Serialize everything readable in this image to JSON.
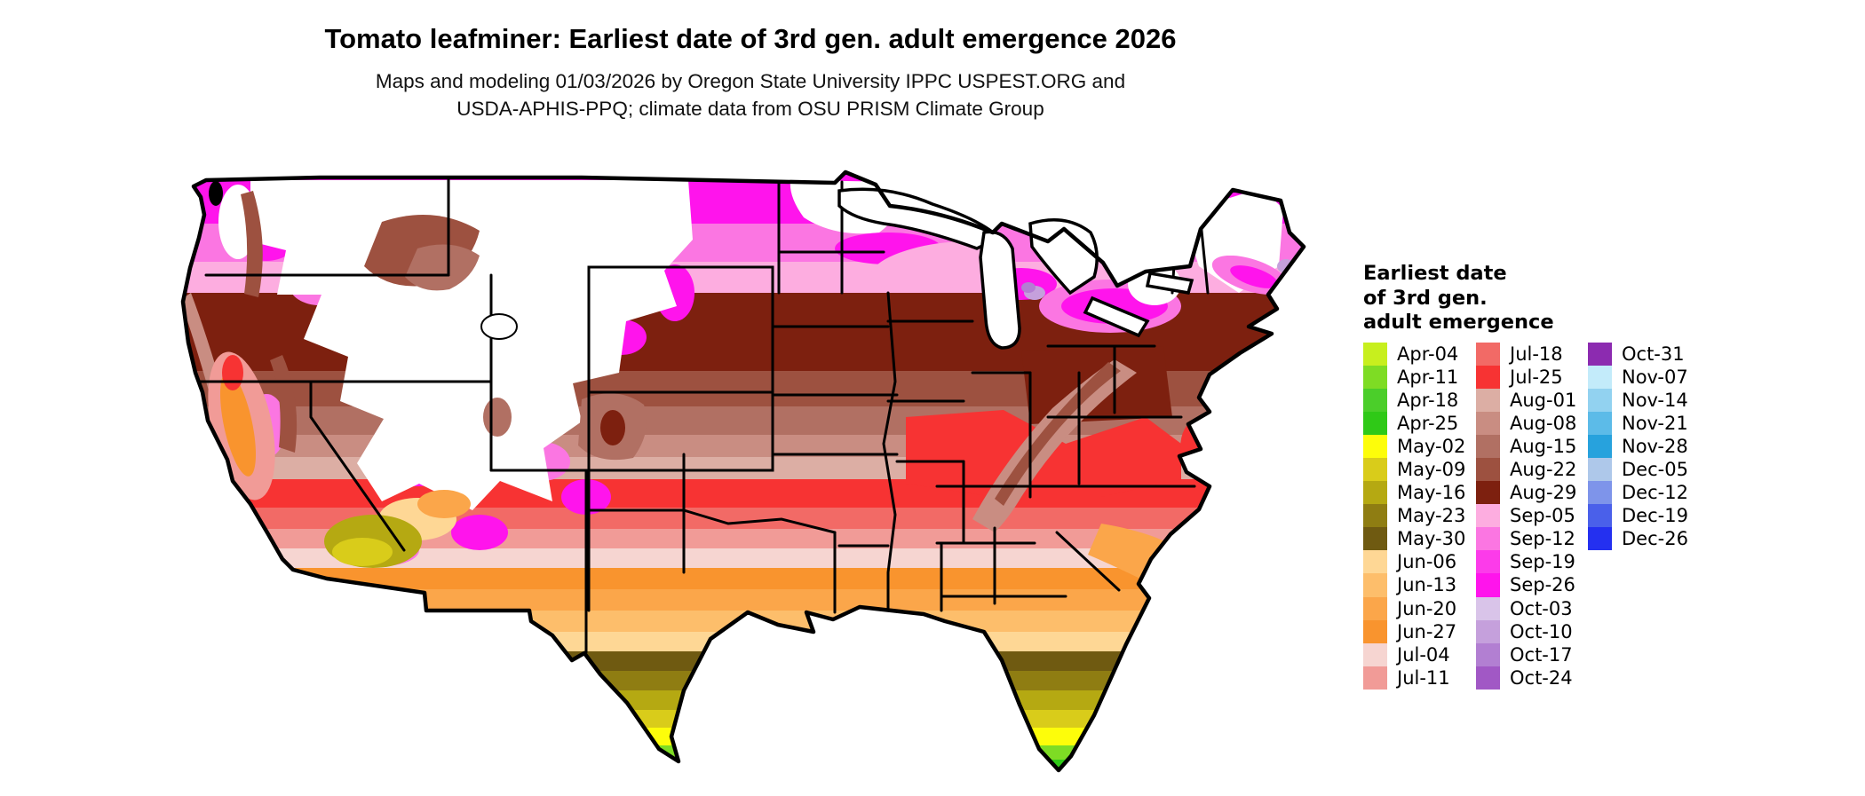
{
  "header": {
    "title": "Tomato leafminer: Earliest date of 3rd gen. adult emergence 2026",
    "subtitle_line1": "Maps and modeling 01/03/2026 by Oregon State University IPPC USPEST.ORG and",
    "subtitle_line2": "USDA-APHIS-PPQ; climate data from OSU PRISM Climate Group"
  },
  "legend": {
    "title_lines": [
      "Earliest date",
      "of 3rd gen.",
      "adult emergence"
    ],
    "columns": [
      {
        "entries": [
          {
            "label": "Apr-04",
            "color": "#c7ef1e"
          },
          {
            "label": "Apr-11",
            "color": "#7edc24"
          },
          {
            "label": "Apr-18",
            "color": "#4bce2a"
          },
          {
            "label": "Apr-25",
            "color": "#2fc917"
          },
          {
            "label": "May-02",
            "color": "#fdfd0a"
          },
          {
            "label": "May-09",
            "color": "#d9cc1a"
          },
          {
            "label": "May-16",
            "color": "#b5a912"
          },
          {
            "label": "May-23",
            "color": "#8f7d12"
          },
          {
            "label": "May-30",
            "color": "#6f5a11"
          },
          {
            "label": "Jun-06",
            "color": "#fed795"
          },
          {
            "label": "Jun-13",
            "color": "#fdbe6b"
          },
          {
            "label": "Jun-20",
            "color": "#fba64a"
          },
          {
            "label": "Jun-27",
            "color": "#f9942e"
          },
          {
            "label": "Jul-04",
            "color": "#f6d5d1"
          },
          {
            "label": "Jul-11",
            "color": "#f19b97"
          }
        ]
      },
      {
        "entries": [
          {
            "label": "Jul-18",
            "color": "#f26a66"
          },
          {
            "label": "Jul-25",
            "color": "#f73333"
          },
          {
            "label": "Aug-01",
            "color": "#dcaea4"
          },
          {
            "label": "Aug-08",
            "color": "#c98d82"
          },
          {
            "label": "Aug-15",
            "color": "#b17063"
          },
          {
            "label": "Aug-22",
            "color": "#9d5140"
          },
          {
            "label": "Aug-29",
            "color": "#7d200f"
          },
          {
            "label": "Sep-05",
            "color": "#fdade0"
          },
          {
            "label": "Sep-12",
            "color": "#fb76e2"
          },
          {
            "label": "Sep-19",
            "color": "#fc3bea"
          },
          {
            "label": "Sep-26",
            "color": "#ff14ec"
          },
          {
            "label": "Oct-03",
            "color": "#d9c4e9"
          },
          {
            "label": "Oct-10",
            "color": "#c5a0dc"
          },
          {
            "label": "Oct-17",
            "color": "#b27fd2"
          },
          {
            "label": "Oct-24",
            "color": "#a158c5"
          }
        ]
      },
      {
        "entries": [
          {
            "label": "Oct-31",
            "color": "#8c2bb0"
          },
          {
            "label": "Nov-07",
            "color": "#c3ebfa"
          },
          {
            "label": "Nov-14",
            "color": "#92d2f0"
          },
          {
            "label": "Nov-21",
            "color": "#5cbbe8"
          },
          {
            "label": "Nov-28",
            "color": "#27a2dd"
          },
          {
            "label": "Dec-05",
            "color": "#aec8ea"
          },
          {
            "label": "Dec-12",
            "color": "#7e94ea"
          },
          {
            "label": "Dec-19",
            "color": "#4a60ea"
          },
          {
            "label": "Dec-26",
            "color": "#2430f0"
          }
        ]
      }
    ]
  },
  "map": {
    "region": "Contiguous United States",
    "type": "choropleth raster of earliest 3rd generation adult emergence date",
    "band_order_north_to_south": [
      "Sep-26",
      "Sep-12",
      "Sep-05",
      "Aug-29",
      "Aug-22",
      "Aug-15",
      "Aug-08",
      "Aug-01",
      "Jul-25",
      "Jul-18",
      "Jul-11",
      "Jul-04",
      "Jun-27",
      "Jun-20",
      "Jun-13",
      "Jun-06",
      "May-30",
      "May-23",
      "May-16",
      "May-09",
      "May-02",
      "Apr-11",
      "Apr-25"
    ],
    "colors": {
      "state_border": "#000000",
      "no_emergence": "#ffffff",
      "water": "#ffffff"
    }
  }
}
